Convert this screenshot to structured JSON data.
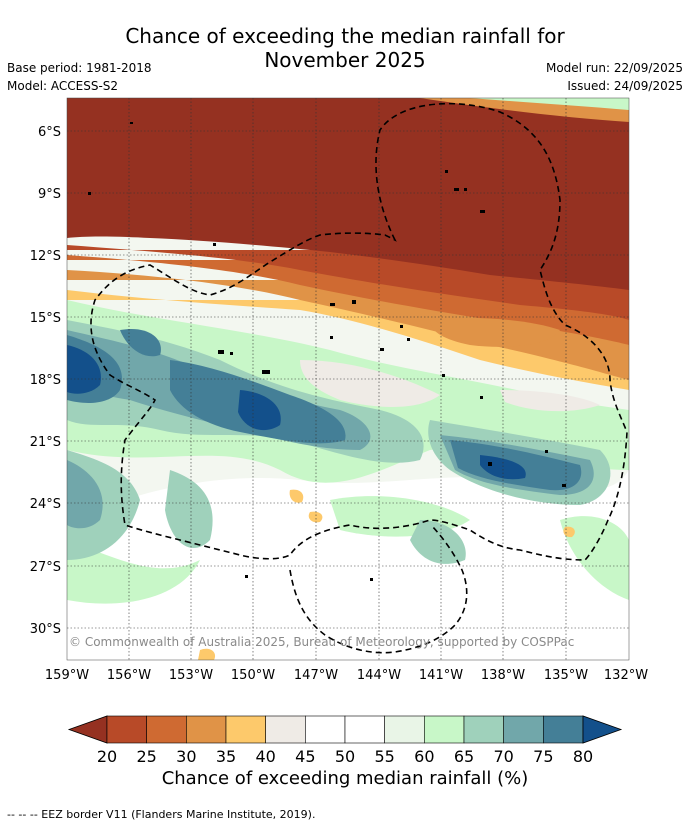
{
  "title_line1": "Chance of exceeding the median rainfall for",
  "title_line2": "November 2025",
  "base_period": "Base period: 1981-2018",
  "model": "Model: ACCESS-S2",
  "model_run": "Model run: 22/09/2025",
  "issued": "Issued: 24/09/2025",
  "copyright": "© Commonwealth of Australia 2025, Bureau of Meteorology, supported by COSPPac",
  "lat_labels": [
    "6°S",
    "9°S",
    "12°S",
    "15°S",
    "18°S",
    "21°S",
    "24°S",
    "27°S",
    "30°S"
  ],
  "lon_labels": [
    "159°W",
    "156°W",
    "153°W",
    "150°W",
    "147°W",
    "144°W",
    "141°W",
    "138°W",
    "135°W",
    "132°W"
  ],
  "colorbar": {
    "title": "Chance of exceeding median rainfall (%)",
    "ticks": [
      "20",
      "25",
      "30",
      "35",
      "40",
      "45",
      "50",
      "55",
      "60",
      "65",
      "70",
      "75",
      "80"
    ],
    "colors": [
      "#953121",
      "#b84a28",
      "#cf6a32",
      "#e09347",
      "#fdc96b",
      "#efebe6",
      "#ffffff",
      "#ffffff",
      "#e9f5e7",
      "#c8f7c8",
      "#9fd1bb",
      "#71a7aa",
      "#447f97",
      "#13508b"
    ]
  },
  "footnote": "--  --  -- EEZ border V11 (Flanders Marine Institute, 2019)."
}
